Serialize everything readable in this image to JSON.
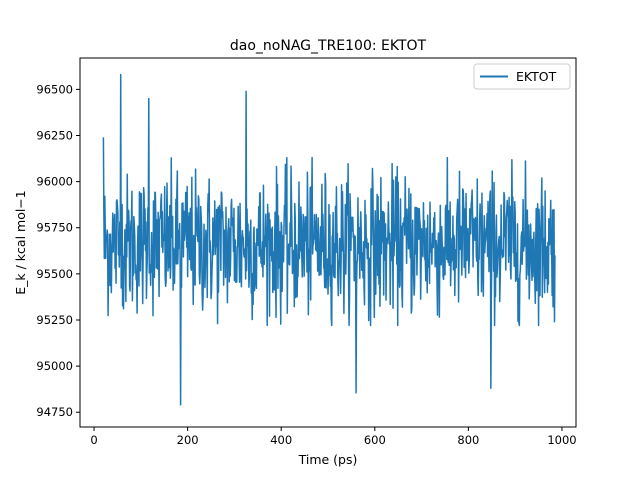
{
  "chart_data": {
    "type": "line",
    "title": "dao_noNAG_TRE100:  EKTOT",
    "xlabel": "Time (ps)",
    "ylabel": "E_k / kcal mol−1",
    "xlim": [
      -30,
      1030
    ],
    "ylim": [
      94670,
      96670
    ],
    "x_ticks": [
      0,
      200,
      400,
      600,
      800,
      1000
    ],
    "x_tick_labels": [
      "0",
      "200",
      "400",
      "600",
      "800",
      "1000"
    ],
    "y_ticks": [
      94750,
      95000,
      95250,
      95500,
      95750,
      96000,
      96250,
      96500
    ],
    "y_tick_labels": [
      "94750",
      "95000",
      "95250",
      "95500",
      "95750",
      "96000",
      "96250",
      "96500"
    ],
    "grid": false,
    "legend": {
      "position": "top-right"
    },
    "series": [
      {
        "name": "EKTOT",
        "color": "#1f77b4",
        "x_start": 20,
        "x_end": 985,
        "x_step": 1,
        "mean": 95660,
        "typical_min": 95300,
        "typical_max": 96050,
        "extremes": [
          {
            "x": 57,
            "y": 96580
          },
          {
            "x": 185,
            "y": 94790
          },
          {
            "x": 560,
            "y": 94855
          },
          {
            "x": 325,
            "y": 96490
          },
          {
            "x": 848,
            "y": 94880
          },
          {
            "x": 117,
            "y": 96450
          },
          {
            "x": 20,
            "y": 96240
          },
          {
            "x": 985,
            "y": 95600
          }
        ]
      }
    ]
  }
}
